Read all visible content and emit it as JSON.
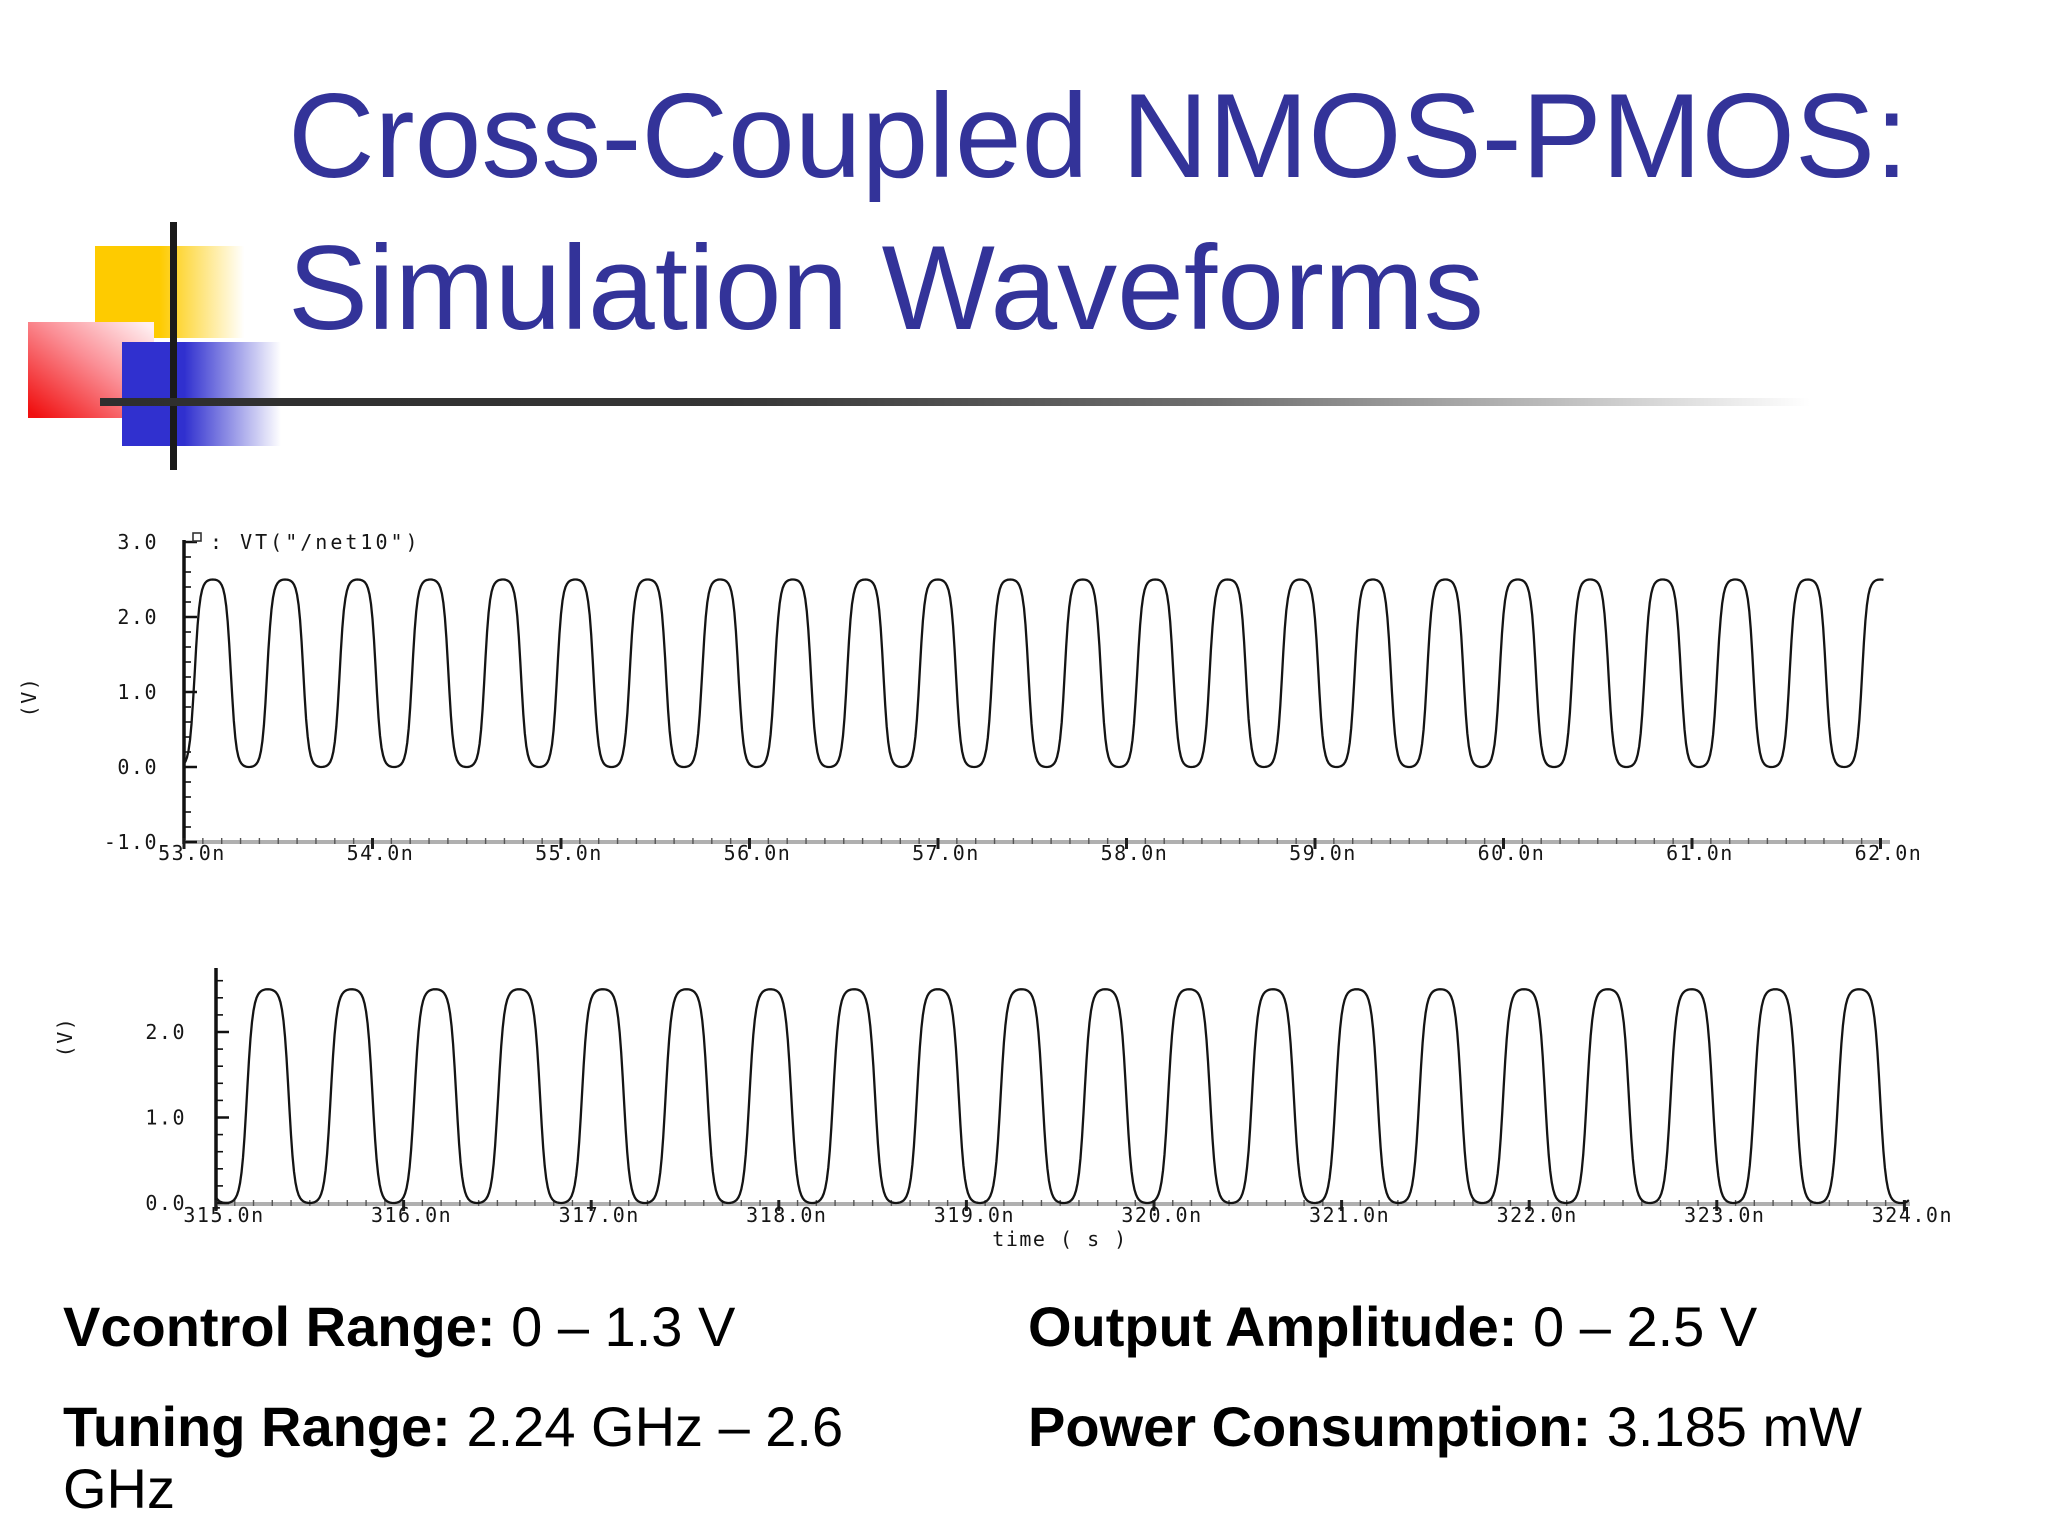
{
  "slide": {
    "title_lines": [
      "Cross-Coupled NMOS-PMOS:",
      "Simulation Waveforms"
    ],
    "colors": {
      "title": "#333399",
      "deco_yellow": "#fecb00",
      "deco_red": "#f01010",
      "deco_blue": "#3030cf",
      "deco_line": "#1a1a1a",
      "waveform": "#141414",
      "axis": "#111111",
      "x_axis_line": "#b0b0b0"
    }
  },
  "specs": {
    "vcontrol": {
      "label": "Vcontrol Range:",
      "value": "0 – 1.3 V"
    },
    "output_amplitude": {
      "label": "Output Amplitude:",
      "value": "0 – 2.5 V"
    },
    "tuning": {
      "label": "Tuning Range:",
      "value": "2.24 GHz – 2.6 GHz"
    },
    "power": {
      "label": "Power Consumption:",
      "value": "3.185 mW"
    }
  },
  "chart_data": [
    {
      "type": "line",
      "name": "vco-output-max-frequency",
      "legend_label": ":  VT(\"/net10\")",
      "legend_marker": "open-square",
      "ylabel": "(V)",
      "xlabel": "",
      "x_range_ns": [
        53.0,
        62.0
      ],
      "ylim": [
        -1.0,
        3.0
      ],
      "y_tick_values": [
        3.0,
        2.0,
        1.0,
        0.0,
        -1.0
      ],
      "y_tick_labels": [
        "3.0",
        "2.0",
        "1.0",
        "0.0",
        "-1.0"
      ],
      "x_tick_labels": [
        "53.0n",
        "54.0n",
        "55.0n",
        "56.0n",
        "57.0n",
        "58.0n",
        "59.0n",
        "60.0n",
        "61.0n",
        "62.0n"
      ],
      "grid": false,
      "waveform": {
        "shape": "saturated_sine",
        "v_min": 0.0,
        "v_max": 2.5,
        "frequency_GHz": 2.6,
        "period_ns": 0.3846,
        "phase_cycles": -0.147,
        "cycles_shown": 23.4
      }
    },
    {
      "type": "line",
      "name": "vco-output-min-frequency",
      "legend_label": "",
      "ylabel": "(V)",
      "xlabel": "time ( s )",
      "x_range_ns": [
        315.0,
        324.0
      ],
      "ylim": [
        0.0,
        2.6
      ],
      "y_tick_values": [
        2.0,
        1.0,
        0.0
      ],
      "y_tick_labels": [
        "2.0",
        "1.0",
        "0.0"
      ],
      "x_tick_labels": [
        "315.0n",
        "316.0n",
        "317.0n",
        "318.0n",
        "319.0n",
        "320.0n",
        "321.0n",
        "322.0n",
        "323.0n",
        "324.0n"
      ],
      "grid": false,
      "waveform": {
        "shape": "saturated_sine",
        "v_min": 0.0,
        "v_max": 2.5,
        "frequency_GHz": 2.24,
        "period_ns": 0.4464,
        "phase_cycles": -0.369,
        "cycles_shown": 20.2
      }
    }
  ]
}
